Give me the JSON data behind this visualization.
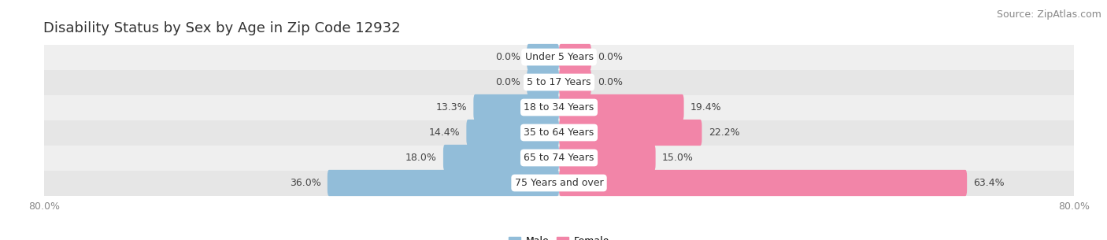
{
  "title": "Disability Status by Sex by Age in Zip Code 12932",
  "source": "Source: ZipAtlas.com",
  "categories": [
    "Under 5 Years",
    "5 to 17 Years",
    "18 to 34 Years",
    "35 to 64 Years",
    "65 to 74 Years",
    "75 Years and over"
  ],
  "male_values": [
    0.0,
    0.0,
    13.3,
    14.4,
    18.0,
    36.0
  ],
  "female_values": [
    0.0,
    0.0,
    19.4,
    22.2,
    15.0,
    63.4
  ],
  "male_color": "#92BDD9",
  "female_color": "#F285A8",
  "row_bg_colors": [
    "#EFEFEF",
    "#E6E6E6"
  ],
  "xlim": 80.0,
  "title_fontsize": 13,
  "source_fontsize": 9,
  "label_fontsize": 9,
  "value_fontsize": 9,
  "cat_fontsize": 9,
  "bar_height": 0.52,
  "min_bar_width": 5.0,
  "background_color": "#ffffff"
}
